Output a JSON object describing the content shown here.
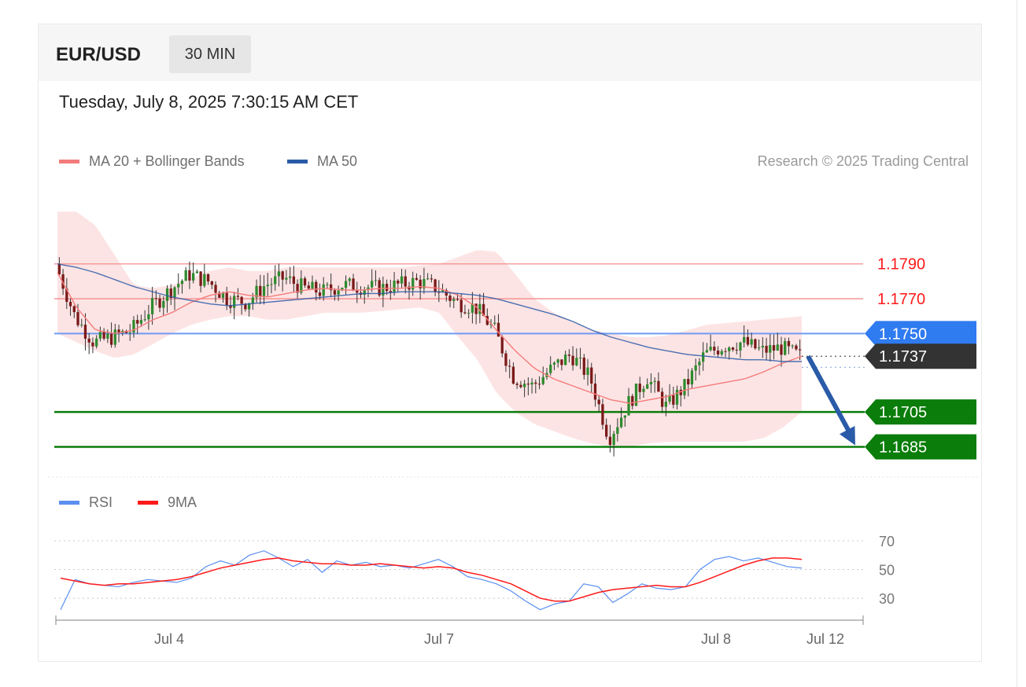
{
  "header": {
    "pair": "EUR/USD",
    "timeframe": "30 MIN"
  },
  "timestamp": "Tuesday, July 8, 2025 7:30:15 AM CET",
  "legend": {
    "ma20": {
      "label": "MA 20 + Bollinger Bands",
      "color": "#f47c7c"
    },
    "ma50": {
      "label": "MA 50",
      "color": "#2a5ba8"
    },
    "credit": "Research © 2025 Trading Central"
  },
  "rsi_legend": {
    "rsi": {
      "label": "RSI",
      "color": "#5b8ff0"
    },
    "ma9": {
      "label": "9MA",
      "color": "#ff1a1a"
    }
  },
  "chart_data": [
    {
      "type": "candlestick",
      "title": "",
      "x_ticks": [
        "Jul 4",
        "Jul 7",
        "Jul 8",
        "Jul 12"
      ],
      "ylim": [
        1.1678,
        1.1835
      ],
      "last_price": 1.1737,
      "levels": [
        {
          "label": "1.1790",
          "value": 1.179,
          "kind": "resistance",
          "color": "#ff1a1a"
        },
        {
          "label": "1.1770",
          "value": 1.177,
          "kind": "resistance",
          "color": "#ff1a1a"
        },
        {
          "label": "1.1750",
          "value": 1.175,
          "kind": "pivot",
          "color": "#2f7bf0"
        },
        {
          "label": "1.1737",
          "value": 1.1737,
          "kind": "last",
          "color": "#333333"
        },
        {
          "label": "1.1705",
          "value": 1.1705,
          "kind": "support",
          "color": "#0a7d0a"
        },
        {
          "label": "1.1685",
          "value": 1.1685,
          "kind": "support",
          "color": "#0a7d0a"
        }
      ],
      "forecast": {
        "direction": "down",
        "from": 1.1737,
        "to": 1.1685,
        "color": "#2a5ba8"
      },
      "close_anchors": [
        1.179,
        1.176,
        1.1745,
        1.1748,
        1.1752,
        1.1765,
        1.1775,
        1.1784,
        1.178,
        1.177,
        1.1768,
        1.1778,
        1.1782,
        1.1776,
        1.1774,
        1.1778,
        1.1777,
        1.1776,
        1.1778,
        1.178,
        1.1776,
        1.1768,
        1.1765,
        1.1752,
        1.1725,
        1.172,
        1.173,
        1.1738,
        1.1725,
        1.169,
        1.171,
        1.1725,
        1.1708,
        1.172,
        1.1738,
        1.1743,
        1.1745,
        1.174,
        1.1742,
        1.1737
      ],
      "ma20": [
        1.1785,
        1.1765,
        1.1752,
        1.175,
        1.1752,
        1.1758,
        1.1762,
        1.1768,
        1.1772,
        1.1774,
        1.1772,
        1.1771,
        1.1773,
        1.1775,
        1.1776,
        1.1775,
        1.1775,
        1.1776,
        1.1776,
        1.1777,
        1.1776,
        1.1772,
        1.1765,
        1.1752,
        1.174,
        1.173,
        1.1724,
        1.172,
        1.1716,
        1.1712,
        1.171,
        1.1712,
        1.1714,
        1.1718,
        1.172,
        1.1722,
        1.1724,
        1.1728,
        1.1733,
        1.1737
      ],
      "ma50": [
        1.179,
        1.1788,
        1.1785,
        1.1781,
        1.1777,
        1.1774,
        1.1771,
        1.1769,
        1.1767,
        1.1766,
        1.1767,
        1.1768,
        1.1769,
        1.177,
        1.1771,
        1.1772,
        1.1773,
        1.1773,
        1.1774,
        1.1774,
        1.1774,
        1.1773,
        1.1772,
        1.177,
        1.1767,
        1.1764,
        1.1761,
        1.1757,
        1.1752,
        1.1748,
        1.1745,
        1.1742,
        1.174,
        1.1738,
        1.1737,
        1.1736,
        1.1735,
        1.1735,
        1.1734,
        1.1734
      ],
      "bb_upper": [
        1.182,
        1.182,
        1.1812,
        1.1795,
        1.1778,
        1.1776,
        1.1778,
        1.1782,
        1.1786,
        1.1788,
        1.1786,
        1.1786,
        1.1788,
        1.1788,
        1.1788,
        1.1788,
        1.1788,
        1.1788,
        1.1788,
        1.1789,
        1.179,
        1.1794,
        1.1798,
        1.1797,
        1.1784,
        1.177,
        1.1762,
        1.1757,
        1.1752,
        1.175,
        1.1748,
        1.1748,
        1.1749,
        1.1752,
        1.1755,
        1.1756,
        1.1757,
        1.1758,
        1.1759,
        1.176
      ],
      "bb_lower": [
        1.175,
        1.1745,
        1.174,
        1.1736,
        1.1738,
        1.1744,
        1.175,
        1.1755,
        1.1758,
        1.176,
        1.176,
        1.1758,
        1.1758,
        1.176,
        1.1762,
        1.1762,
        1.1762,
        1.1763,
        1.1764,
        1.1765,
        1.1762,
        1.1748,
        1.1735,
        1.1716,
        1.1705,
        1.1698,
        1.1694,
        1.169,
        1.1687,
        1.1685,
        1.1685,
        1.1687,
        1.1688,
        1.1688,
        1.1688,
        1.1688,
        1.1688,
        1.169,
        1.1696,
        1.1705
      ]
    },
    {
      "type": "line",
      "title": "",
      "y_ticks": [
        "70",
        "50",
        "30"
      ],
      "ylim": [
        18,
        82
      ],
      "x_ticks": [
        "Jul 4",
        "Jul 7",
        "Jul 8",
        "Jul 12"
      ],
      "series": [
        {
          "name": "RSI",
          "color": "#5b8ff0",
          "values": [
            22,
            43,
            40,
            39,
            38,
            41,
            43,
            42,
            41,
            44,
            52,
            56,
            53,
            60,
            63,
            58,
            52,
            57,
            48,
            56,
            53,
            55,
            52,
            53,
            51,
            54,
            57,
            52,
            45,
            43,
            40,
            35,
            28,
            22,
            26,
            28,
            40,
            38,
            27,
            33,
            40,
            37,
            36,
            38,
            50,
            57,
            59,
            56,
            58,
            55,
            52,
            51
          ]
        },
        {
          "name": "9MA",
          "color": "#ff1a1a",
          "values": [
            44,
            42,
            40,
            39,
            40,
            40,
            41,
            42,
            43,
            45,
            48,
            51,
            53,
            55,
            57,
            58,
            56,
            55,
            54,
            54,
            53,
            53,
            54,
            53,
            52,
            51,
            52,
            51,
            48,
            46,
            43,
            40,
            35,
            30,
            28,
            28,
            31,
            34,
            36,
            37,
            38,
            39,
            38,
            38,
            41,
            45,
            49,
            53,
            56,
            58,
            58,
            57
          ]
        }
      ]
    }
  ]
}
